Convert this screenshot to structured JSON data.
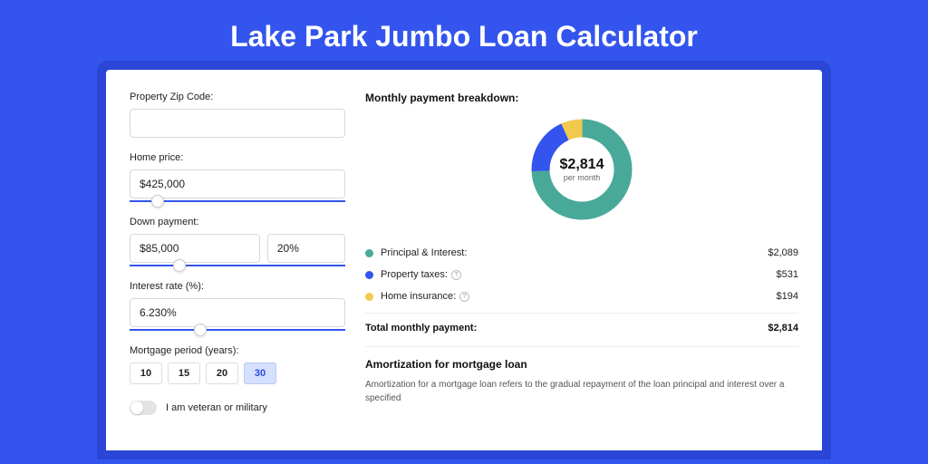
{
  "header": {
    "title": "Lake Park Jumbo Loan Calculator"
  },
  "form": {
    "zip": {
      "label": "Property Zip Code:",
      "value": ""
    },
    "home_price": {
      "label": "Home price:",
      "value": "$425,000",
      "slider_pct": 10
    },
    "down_payment": {
      "label": "Down payment:",
      "value": "$85,000",
      "pct_value": "20%",
      "slider_pct": 20
    },
    "interest": {
      "label": "Interest rate (%):",
      "value": "6.230%",
      "slider_pct": 30
    },
    "period": {
      "label": "Mortgage period (years):",
      "options": [
        "10",
        "15",
        "20",
        "30"
      ],
      "active": "30"
    },
    "veteran": {
      "label": "I am veteran or military",
      "on": false
    }
  },
  "breakdown": {
    "title": "Monthly payment breakdown:",
    "donut": {
      "amount": "$2,814",
      "sub": "per month",
      "slices": [
        {
          "color": "#48a999",
          "pct": 74.3
        },
        {
          "color": "#3355ee",
          "pct": 18.9
        },
        {
          "color": "#f2c94c",
          "pct": 6.8
        }
      ]
    },
    "rows": [
      {
        "color": "#48a999",
        "label": "Principal & Interest:",
        "info": false,
        "value": "$2,089"
      },
      {
        "color": "#3355ee",
        "label": "Property taxes:",
        "info": true,
        "value": "$531"
      },
      {
        "color": "#f2c94c",
        "label": "Home insurance:",
        "info": true,
        "value": "$194"
      }
    ],
    "total": {
      "label": "Total monthly payment:",
      "value": "$2,814"
    }
  },
  "amort": {
    "title": "Amortization for mortgage loan",
    "text": "Amortization for a mortgage loan refers to the gradual repayment of the loan principal and interest over a specified"
  },
  "colors": {
    "page_bg": "#3355ee",
    "card_bg": "#ffffff",
    "accent": "#3355ee"
  }
}
